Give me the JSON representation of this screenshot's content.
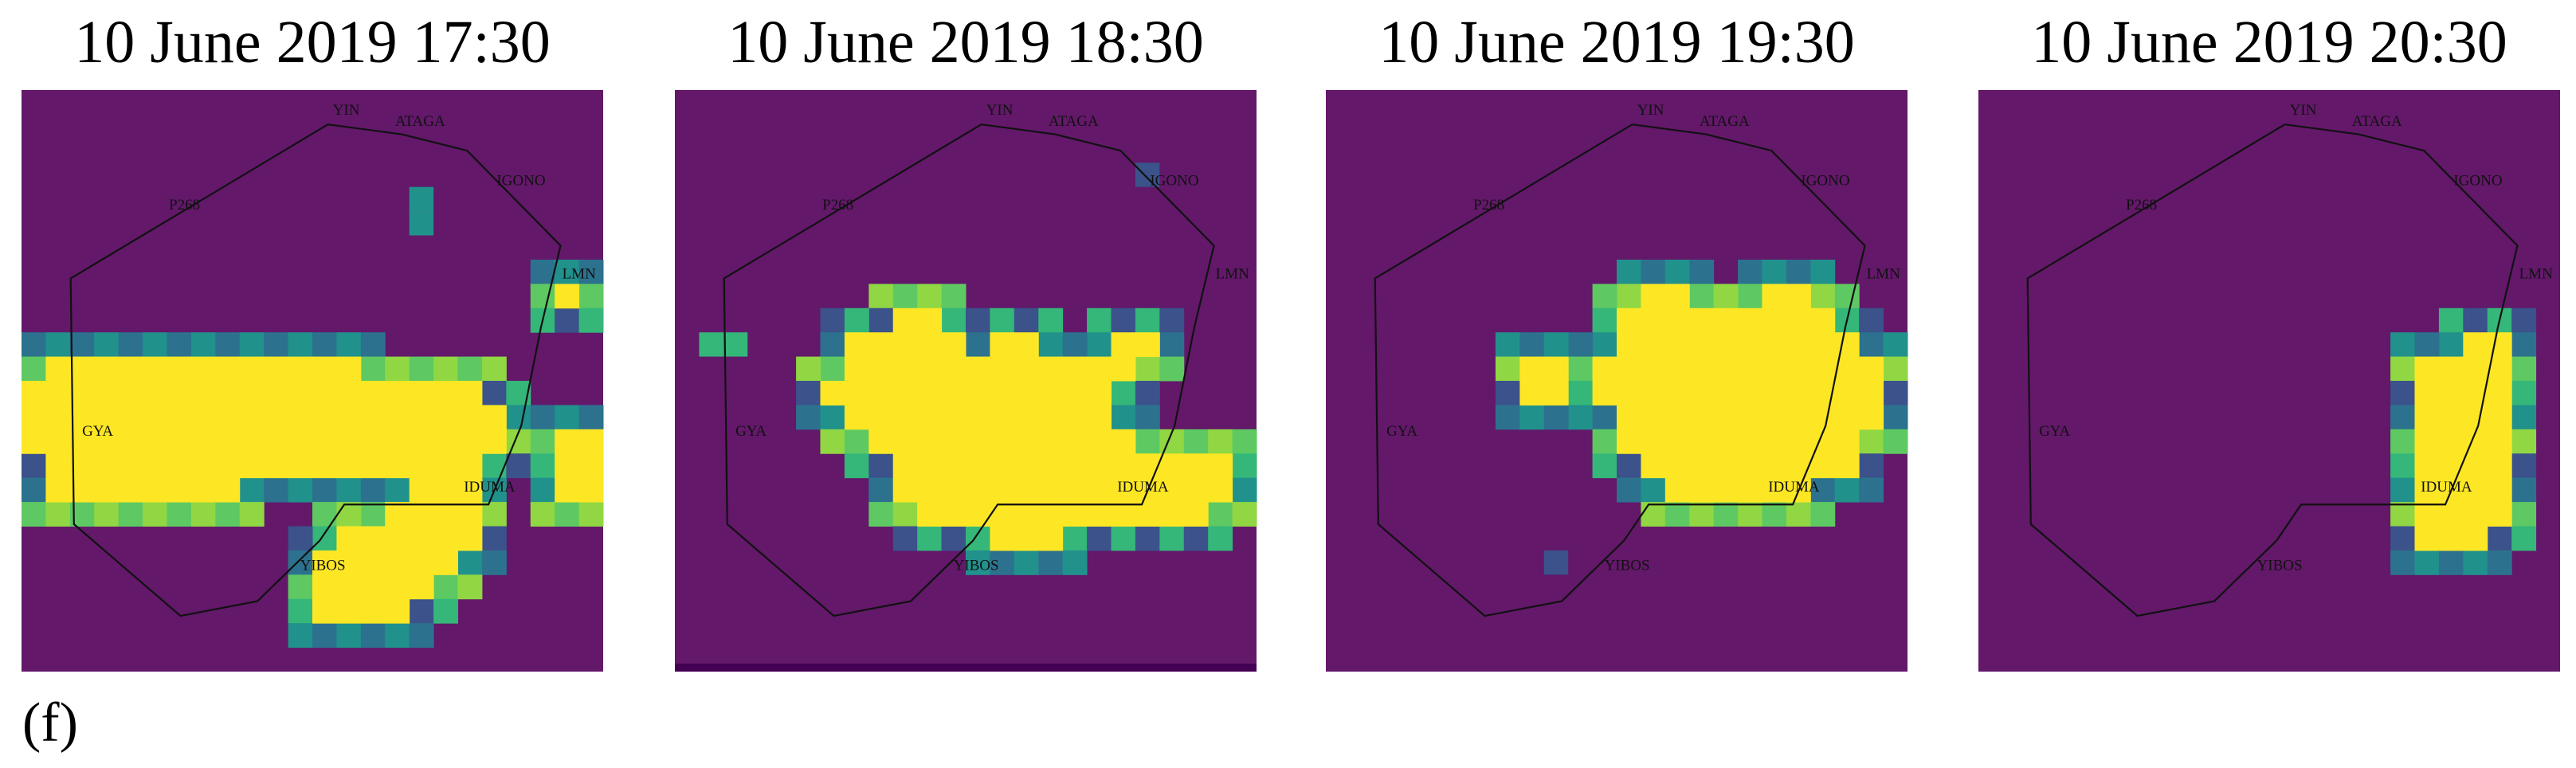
{
  "panels": [
    {
      "title": "10 June 2019 17:30",
      "labels": [
        "YIN",
        "ATAGA",
        "IGONO",
        "LMN",
        "P268",
        "GYA",
        "IDUMA",
        "YIBOS"
      ]
    },
    {
      "title": "10 June 2019 18:30",
      "labels": [
        "YIN",
        "ATAGA",
        "IGONO",
        "LMN",
        "P268",
        "GYA",
        "IDUMA",
        "YIBOS"
      ]
    },
    {
      "title": "10 June 2019 19:30",
      "labels": [
        "YIN",
        "ATAGA",
        "IGONO",
        "LMN",
        "P268",
        "GYA",
        "IDUMA",
        "YIBOS"
      ]
    },
    {
      "title": "10 June 2019 20:30",
      "labels": [
        "YIN",
        "ATAGA",
        "IGONO",
        "LMN",
        "P268",
        "GYA",
        "IDUMA",
        "YIBOS"
      ]
    }
  ],
  "caption": "(f)"
}
